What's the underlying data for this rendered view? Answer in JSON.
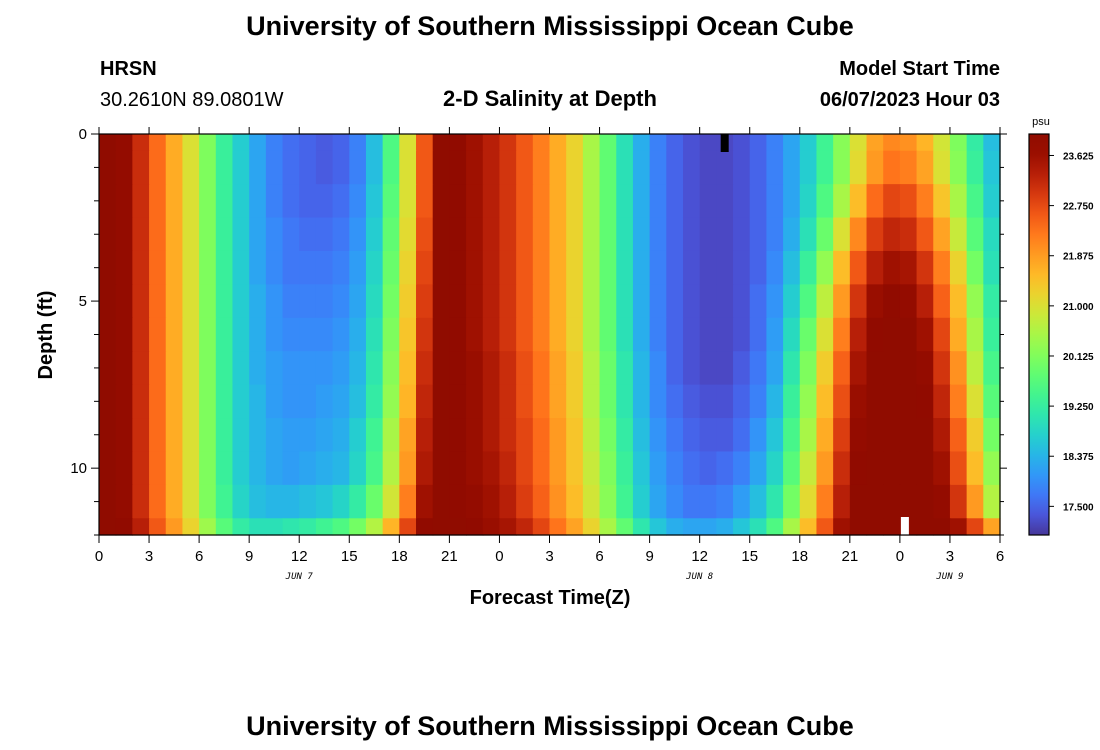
{
  "header": {
    "title": "University of Southern Mississippi Ocean Cube",
    "station_name": "HRSN",
    "coords": "30.2610N  89.0801W",
    "subtitle": "2-D Salinity at Depth",
    "model_start_label": "Model Start Time",
    "model_start_value": "06/07/2023 Hour 03"
  },
  "footer": {
    "title": "University of Southern Mississippi Ocean Cube"
  },
  "chart_data": {
    "type": "heatmap",
    "title": "2-D Salinity at Depth",
    "xlabel": "Forecast Time(Z)",
    "ylabel": "Depth (ft)",
    "x_hours_range": [
      0,
      54
    ],
    "x_tick_labels": [
      "0",
      "3",
      "6",
      "9",
      "12",
      "15",
      "18",
      "21",
      "0",
      "3",
      "6",
      "9",
      "12",
      "15",
      "18",
      "21",
      "0",
      "3",
      "6"
    ],
    "date_labels": [
      {
        "label": "JUN 7",
        "hour": 12
      },
      {
        "label": "JUN 8",
        "hour": 36
      },
      {
        "label": "JUN 9",
        "hour": 51
      }
    ],
    "y_range_ft": [
      0,
      12
    ],
    "y_tick_labels": [
      "0",
      "5",
      "10"
    ],
    "y_tick_values": [
      0,
      5,
      10
    ],
    "colorbar": {
      "unit": "psu",
      "min": 17.0,
      "max": 24.0,
      "tick_labels": [
        "23.625",
        "22.750",
        "21.875",
        "21.000",
        "20.125",
        "19.250",
        "18.375",
        "17.500"
      ],
      "tick_values": [
        23.625,
        22.75,
        21.875,
        21.0,
        20.125,
        19.25,
        18.375,
        17.5
      ],
      "colormap": "turbo"
    },
    "depth_levels_ft": [
      0,
      1,
      2,
      3,
      4,
      5,
      6,
      7,
      8,
      9,
      10,
      11,
      12
    ],
    "time_hours": [
      0,
      1,
      2,
      3,
      4,
      5,
      6,
      7,
      8,
      9,
      10,
      11,
      12,
      13,
      14,
      15,
      16,
      17,
      18,
      19,
      20,
      21,
      22,
      23,
      24,
      25,
      26,
      27,
      28,
      29,
      30,
      31,
      32,
      33,
      34,
      35,
      36,
      37,
      38,
      39,
      40,
      41,
      42,
      43,
      44,
      45,
      46,
      47,
      48,
      49,
      50,
      51,
      52,
      53
    ],
    "salinity_psu": [
      [
        24.2,
        23.8,
        23.1,
        22.4,
        21.7,
        21.0,
        20.1,
        19.3,
        18.7,
        18.2,
        17.8,
        17.6,
        17.5,
        17.4,
        17.5,
        17.8,
        18.5,
        19.6,
        21.0,
        22.6,
        24.0,
        23.9,
        23.6,
        23.3,
        23.0,
        22.6,
        22.2,
        21.7,
        21.2,
        20.5,
        19.8,
        19.0,
        18.3,
        17.8,
        17.5,
        17.3,
        17.2,
        17.2,
        17.3,
        17.5,
        17.8,
        18.2,
        18.7,
        19.4,
        20.2,
        21.0,
        21.8,
        22.1,
        22.0,
        21.6,
        20.9,
        20.1,
        19.2,
        18.5
      ],
      [
        24.2,
        23.8,
        23.1,
        22.4,
        21.7,
        21.0,
        20.1,
        19.3,
        18.7,
        18.2,
        17.8,
        17.6,
        17.5,
        17.4,
        17.5,
        17.8,
        18.5,
        19.6,
        21.0,
        22.6,
        24.0,
        23.9,
        23.6,
        23.3,
        23.0,
        22.6,
        22.2,
        21.7,
        21.2,
        20.5,
        19.8,
        19.0,
        18.3,
        17.8,
        17.5,
        17.3,
        17.2,
        17.2,
        17.3,
        17.5,
        17.8,
        18.2,
        18.7,
        19.4,
        20.2,
        21.1,
        21.9,
        22.3,
        22.2,
        21.8,
        21.0,
        20.2,
        19.3,
        18.6
      ],
      [
        24.2,
        23.8,
        23.1,
        22.4,
        21.7,
        21.0,
        20.1,
        19.3,
        18.7,
        18.2,
        17.8,
        17.6,
        17.5,
        17.5,
        17.6,
        17.9,
        18.6,
        19.7,
        21.0,
        22.6,
        24.0,
        23.9,
        23.6,
        23.3,
        23.0,
        22.6,
        22.2,
        21.7,
        21.2,
        20.5,
        19.8,
        19.0,
        18.3,
        17.8,
        17.5,
        17.3,
        17.2,
        17.2,
        17.3,
        17.5,
        17.8,
        18.2,
        18.8,
        19.6,
        20.5,
        21.5,
        22.4,
        22.8,
        22.7,
        22.2,
        21.4,
        20.5,
        19.5,
        18.7
      ],
      [
        24.2,
        23.8,
        23.1,
        22.4,
        21.7,
        21.0,
        20.1,
        19.3,
        18.7,
        18.2,
        17.9,
        17.7,
        17.6,
        17.6,
        17.7,
        18.0,
        18.7,
        19.8,
        21.1,
        22.7,
        24.0,
        23.9,
        23.6,
        23.3,
        23.0,
        22.6,
        22.2,
        21.7,
        21.2,
        20.5,
        19.8,
        19.0,
        18.3,
        17.8,
        17.5,
        17.3,
        17.2,
        17.2,
        17.3,
        17.5,
        17.8,
        18.3,
        19.0,
        19.9,
        21.0,
        22.1,
        22.9,
        23.2,
        23.1,
        22.6,
        21.8,
        20.8,
        19.7,
        18.9
      ],
      [
        24.2,
        23.8,
        23.1,
        22.4,
        21.7,
        21.0,
        20.1,
        19.3,
        18.7,
        18.2,
        17.9,
        17.7,
        17.7,
        17.7,
        17.8,
        18.1,
        18.8,
        19.9,
        21.2,
        22.8,
        24.0,
        23.9,
        23.6,
        23.3,
        23.0,
        22.6,
        22.2,
        21.7,
        21.2,
        20.5,
        19.8,
        19.0,
        18.3,
        17.8,
        17.5,
        17.3,
        17.2,
        17.2,
        17.3,
        17.5,
        17.9,
        18.5,
        19.3,
        20.3,
        21.5,
        22.6,
        23.3,
        23.6,
        23.5,
        23.0,
        22.2,
        21.2,
        20.0,
        19.0
      ],
      [
        24.2,
        23.8,
        23.1,
        22.4,
        21.7,
        21.0,
        20.1,
        19.3,
        18.7,
        18.3,
        18.0,
        17.8,
        17.8,
        17.8,
        17.9,
        18.2,
        18.9,
        20.0,
        21.3,
        22.9,
        24.0,
        23.9,
        23.6,
        23.3,
        23.0,
        22.6,
        22.2,
        21.7,
        21.2,
        20.5,
        19.8,
        19.0,
        18.3,
        17.8,
        17.5,
        17.3,
        17.2,
        17.2,
        17.3,
        17.6,
        18.0,
        18.7,
        19.6,
        20.7,
        21.9,
        23.0,
        23.7,
        23.9,
        23.8,
        23.3,
        22.5,
        21.5,
        20.3,
        19.2
      ],
      [
        24.2,
        23.8,
        23.1,
        22.4,
        21.7,
        21.0,
        20.1,
        19.3,
        18.7,
        18.3,
        18.0,
        17.9,
        17.9,
        17.9,
        18.0,
        18.3,
        19.0,
        20.1,
        21.4,
        23.0,
        24.0,
        23.9,
        23.6,
        23.3,
        23.0,
        22.6,
        22.2,
        21.7,
        21.2,
        20.5,
        19.8,
        19.0,
        18.3,
        17.8,
        17.5,
        17.3,
        17.2,
        17.2,
        17.3,
        17.6,
        18.1,
        18.9,
        19.9,
        21.0,
        22.2,
        23.3,
        23.9,
        24.0,
        24.0,
        23.6,
        22.8,
        21.7,
        20.5,
        19.3
      ],
      [
        24.2,
        23.8,
        23.1,
        22.4,
        21.7,
        21.0,
        20.1,
        19.3,
        18.7,
        18.3,
        18.1,
        18.0,
        18.0,
        18.0,
        18.1,
        18.4,
        19.1,
        20.2,
        21.5,
        23.1,
        24.0,
        23.9,
        23.7,
        23.4,
        23.1,
        22.7,
        22.3,
        21.8,
        21.3,
        20.6,
        19.9,
        19.1,
        18.4,
        17.9,
        17.5,
        17.3,
        17.2,
        17.2,
        17.4,
        17.7,
        18.2,
        19.1,
        20.1,
        21.3,
        22.5,
        23.5,
        24.0,
        24.0,
        24.0,
        23.8,
        23.0,
        22.0,
        20.7,
        19.5
      ],
      [
        24.2,
        23.8,
        23.1,
        22.4,
        21.7,
        21.0,
        20.1,
        19.3,
        18.7,
        18.4,
        18.1,
        18.0,
        18.0,
        18.1,
        18.2,
        18.5,
        19.2,
        20.3,
        21.6,
        23.2,
        24.0,
        23.9,
        23.7,
        23.4,
        23.1,
        22.7,
        22.3,
        21.8,
        21.3,
        20.6,
        19.9,
        19.1,
        18.4,
        17.9,
        17.6,
        17.4,
        17.3,
        17.3,
        17.5,
        17.8,
        18.4,
        19.3,
        20.3,
        21.5,
        22.7,
        23.7,
        24.0,
        24.0,
        24.0,
        23.9,
        23.2,
        22.2,
        21.0,
        19.7
      ],
      [
        24.2,
        23.8,
        23.1,
        22.4,
        21.7,
        21.0,
        20.1,
        19.3,
        18.7,
        18.4,
        18.2,
        18.1,
        18.1,
        18.2,
        18.3,
        18.7,
        19.4,
        20.5,
        21.8,
        23.3,
        24.0,
        23.9,
        23.7,
        23.4,
        23.1,
        22.8,
        22.4,
        21.9,
        21.4,
        20.7,
        20.0,
        19.2,
        18.5,
        18.0,
        17.7,
        17.5,
        17.4,
        17.4,
        17.6,
        18.0,
        18.6,
        19.5,
        20.5,
        21.7,
        22.9,
        23.8,
        24.0,
        24.0,
        24.0,
        24.0,
        23.4,
        22.5,
        21.3,
        20.0
      ],
      [
        24.2,
        23.8,
        23.1,
        22.4,
        21.7,
        21.0,
        20.1,
        19.3,
        18.7,
        18.4,
        18.2,
        18.1,
        18.2,
        18.3,
        18.4,
        18.8,
        19.5,
        20.6,
        21.9,
        23.4,
        24.0,
        23.9,
        23.7,
        23.5,
        23.2,
        22.8,
        22.4,
        21.9,
        21.4,
        20.8,
        20.1,
        19.3,
        18.6,
        18.1,
        17.8,
        17.6,
        17.5,
        17.6,
        17.8,
        18.2,
        18.8,
        19.7,
        20.8,
        21.9,
        23.1,
        23.9,
        24.0,
        24.0,
        24.0,
        24.0,
        23.6,
        22.7,
        21.5,
        20.3
      ],
      [
        24.2,
        23.8,
        23.1,
        22.4,
        21.7,
        21.0,
        20.1,
        19.4,
        18.8,
        18.5,
        18.4,
        18.4,
        18.5,
        18.6,
        18.8,
        19.2,
        19.9,
        20.9,
        22.2,
        23.6,
        24.0,
        23.9,
        23.8,
        23.6,
        23.3,
        22.9,
        22.5,
        22.0,
        21.5,
        20.9,
        20.2,
        19.4,
        18.7,
        18.2,
        17.9,
        17.7,
        17.7,
        17.8,
        18.1,
        18.5,
        19.1,
        20.0,
        21.1,
        22.2,
        23.3,
        24.0,
        24.0,
        24.0,
        24.0,
        24.0,
        23.8,
        23.0,
        21.9,
        20.6
      ],
      [
        24.2,
        23.9,
        23.3,
        22.6,
        21.9,
        21.2,
        20.4,
        19.7,
        19.2,
        19.0,
        19.0,
        19.1,
        19.2,
        19.4,
        19.6,
        20.0,
        20.6,
        21.6,
        22.8,
        23.9,
        24.0,
        24.0,
        23.9,
        23.7,
        23.5,
        23.2,
        22.8,
        22.3,
        21.8,
        21.2,
        20.5,
        19.8,
        19.1,
        18.6,
        18.3,
        18.2,
        18.2,
        18.3,
        18.6,
        19.0,
        19.6,
        20.5,
        21.5,
        22.6,
        23.6,
        24.0,
        24.0,
        24.0,
        24.0,
        24.0,
        24.0,
        23.6,
        22.8,
        21.8
      ]
    ],
    "markers": [
      {
        "hour": 37.5,
        "depth_ft": 0,
        "color": "#000000"
      },
      {
        "hour": 48.3,
        "depth_ft": 12,
        "color": "#ffffff"
      }
    ]
  }
}
